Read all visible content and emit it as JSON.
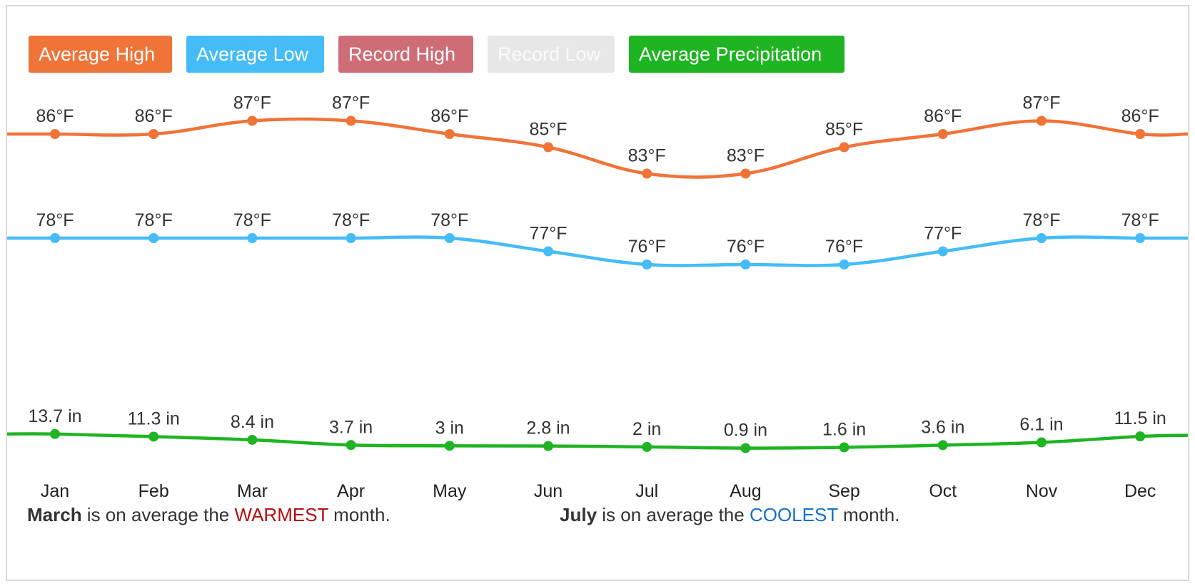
{
  "legend": {
    "items": [
      {
        "key": "avg-high",
        "label": "Average High"
      },
      {
        "key": "avg-low",
        "label": "Average Low"
      },
      {
        "key": "rec-high",
        "label": "Record High"
      },
      {
        "key": "rec-low",
        "label": "Record Low"
      },
      {
        "key": "avg-precip",
        "label": "Average Precipitation"
      }
    ]
  },
  "colors": {
    "avg_high": "#f07338",
    "avg_low": "#45bcf7",
    "record_high": "#cf6d77",
    "record_low_disabled": "#e7e7e7",
    "avg_precip": "#1fb422",
    "warmest": "#b50f12",
    "coolest": "#1570c9"
  },
  "chart_data": {
    "type": "line",
    "categories": [
      "Jan",
      "Feb",
      "Mar",
      "Apr",
      "May",
      "Jun",
      "Jul",
      "Aug",
      "Sep",
      "Oct",
      "Nov",
      "Dec"
    ],
    "series": [
      {
        "name": "Average High",
        "unit": "°F",
        "values": [
          86,
          86,
          87,
          87,
          86,
          85,
          83,
          83,
          85,
          86,
          87,
          86
        ]
      },
      {
        "name": "Average Low",
        "unit": "°F",
        "values": [
          78,
          78,
          78,
          78,
          78,
          77,
          76,
          76,
          76,
          77,
          78,
          78
        ]
      },
      {
        "name": "Average Precipitation",
        "unit": "in",
        "values": [
          13.7,
          11.3,
          8.4,
          3.7,
          3,
          2.8,
          2,
          0.9,
          1.6,
          3.6,
          6.1,
          11.5
        ]
      }
    ],
    "hidden_series": [
      "Record High",
      "Record Low"
    ],
    "data_labels": {
      "avg_high": [
        "86°F",
        "86°F",
        "87°F",
        "87°F",
        "86°F",
        "85°F",
        "83°F",
        "83°F",
        "85°F",
        "86°F",
        "87°F",
        "86°F"
      ],
      "avg_low": [
        "78°F",
        "78°F",
        "78°F",
        "78°F",
        "78°F",
        "77°F",
        "76°F",
        "76°F",
        "76°F",
        "77°F",
        "78°F",
        "78°F"
      ],
      "avg_precip": [
        "13.7 in",
        "11.3 in",
        "8.4 in",
        "3.7 in",
        "3 in",
        "2.8 in",
        "2 in",
        "0.9 in",
        "1.6 in",
        "3.6 in",
        "6.1 in",
        "11.5 in"
      ]
    },
    "grid": false
  },
  "footer": {
    "warmest": {
      "month": "March",
      "mid": " is on average the ",
      "word": "WARMEST",
      "end": " month."
    },
    "coolest": {
      "month": "July",
      "mid": " is on average the ",
      "word": "COOLEST",
      "end": " month."
    }
  }
}
